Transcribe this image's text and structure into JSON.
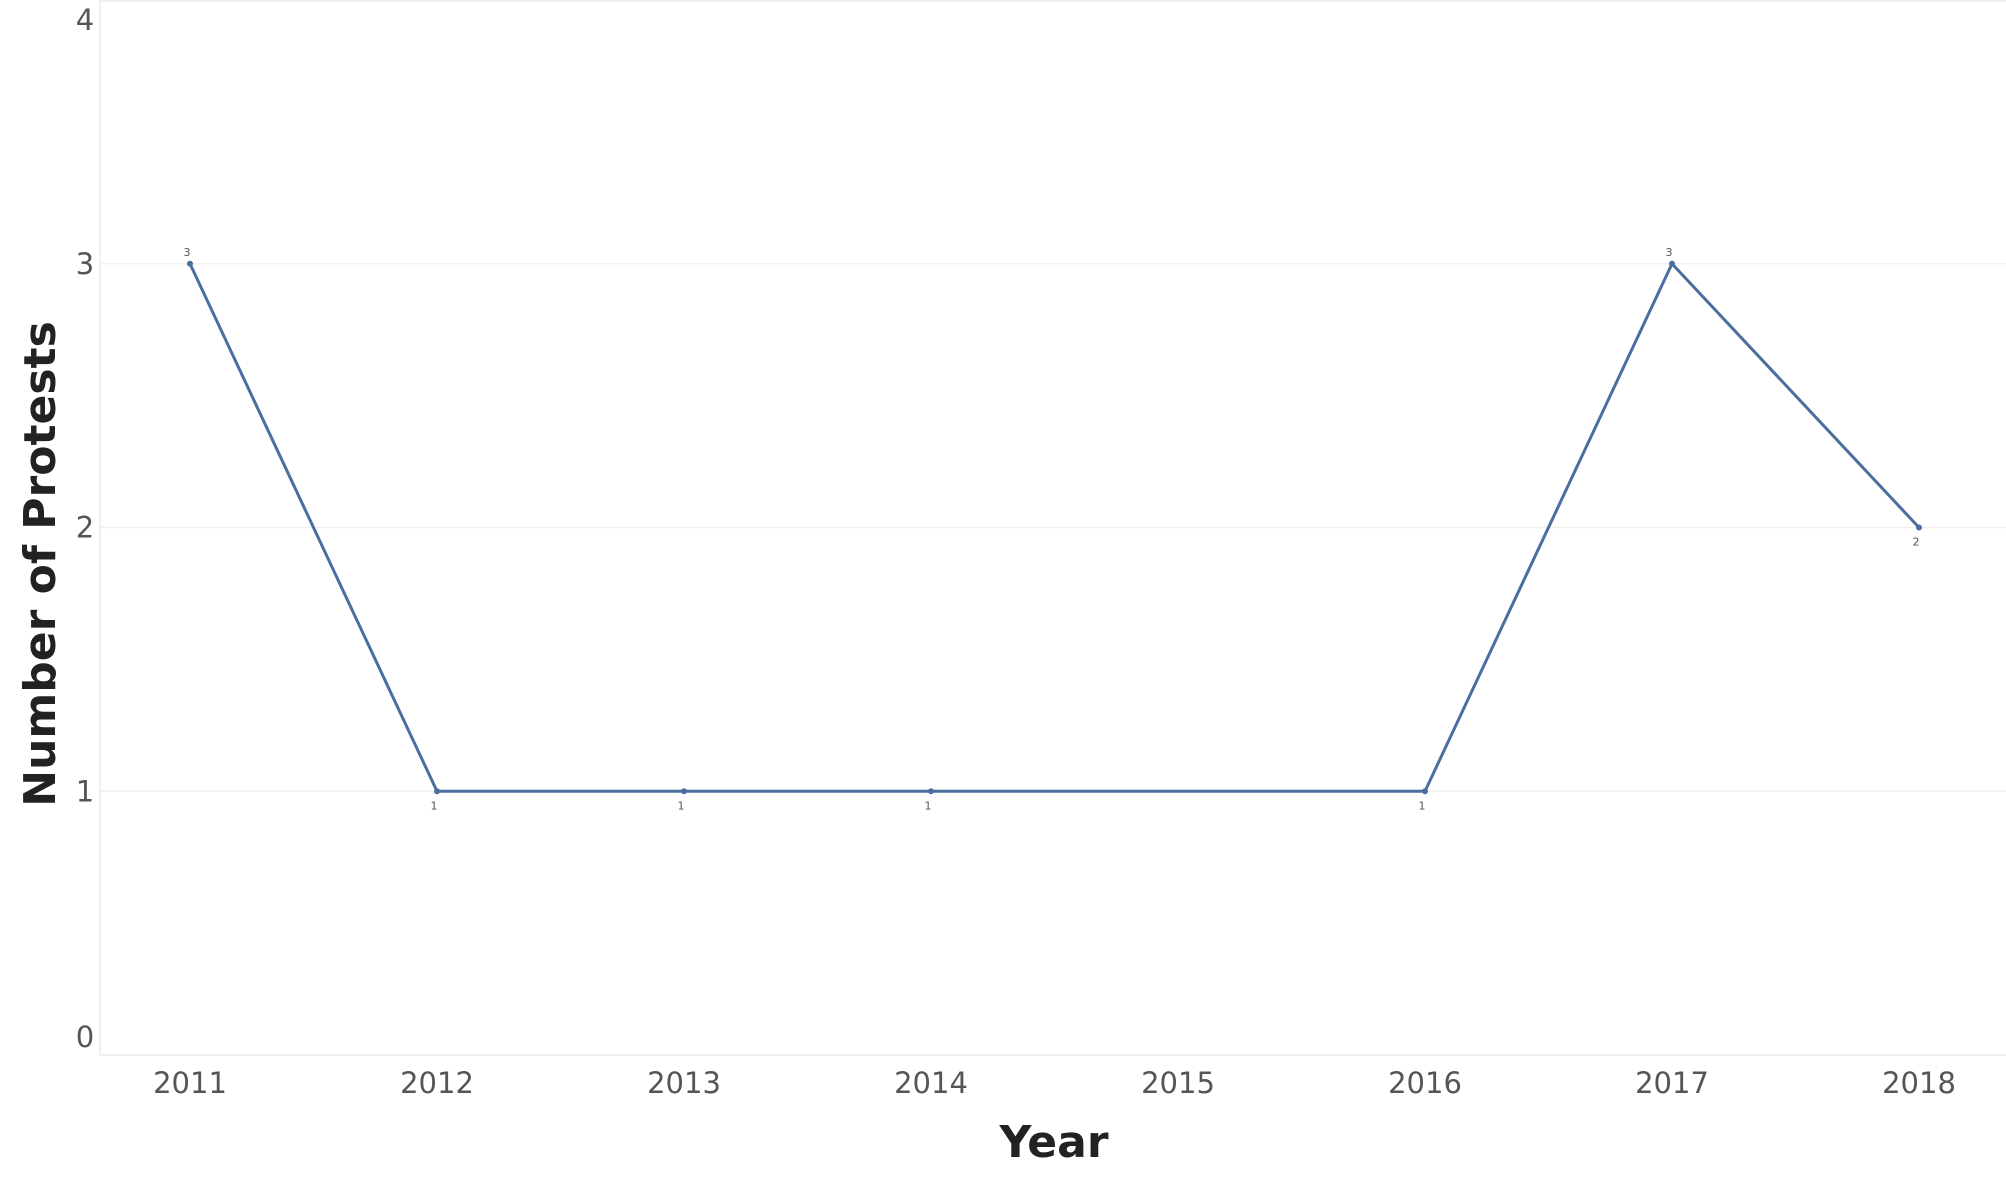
{
  "chart_data": {
    "type": "line",
    "title": "",
    "xlabel": "Year",
    "ylabel": "Number of Protests",
    "categories": [
      "2011",
      "2012",
      "2013",
      "2014",
      "2015",
      "2016",
      "2017",
      "2018"
    ],
    "series": [
      {
        "name": "",
        "points": [
          {
            "x": "2011",
            "y": 3
          },
          {
            "x": "2012",
            "y": 1
          },
          {
            "x": "2013",
            "y": 1
          },
          {
            "x": "2014",
            "y": 1
          },
          {
            "x": "2016",
            "y": 1
          },
          {
            "x": "2017",
            "y": 3
          },
          {
            "x": "2018",
            "y": 2
          }
        ]
      }
    ],
    "y_ticks": [
      0,
      1,
      2,
      3,
      4
    ],
    "ylim": [
      0,
      4
    ],
    "grid": true,
    "legend": "none",
    "data_labels": [
      "3",
      "1",
      "1",
      "1",
      "1",
      "3",
      "2"
    ],
    "colors": {
      "line": "#4a6f9e",
      "grid": "#efefef",
      "axis": "#e6e6e6"
    }
  }
}
